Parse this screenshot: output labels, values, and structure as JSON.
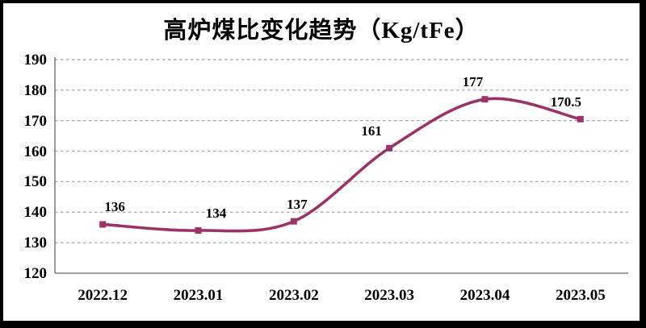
{
  "page": {
    "background": "#FFFFFF",
    "frame_border_color": "#000000"
  },
  "chart_data": {
    "type": "line",
    "title": "高炉煤比变化趋势（Kg/tFe）",
    "categories": [
      "2022.12",
      "2023.01",
      "2023.02",
      "2023.03",
      "2023.04",
      "2023.05"
    ],
    "values": [
      136,
      134,
      137,
      161,
      177,
      170.5
    ],
    "data_labels": [
      "136",
      "134",
      "137",
      "161",
      "177",
      "170.5"
    ],
    "xlabel": "",
    "ylabel": "",
    "ylim": [
      120,
      190
    ],
    "yticks": [
      120,
      130,
      140,
      150,
      160,
      170,
      180,
      190
    ],
    "grid": true,
    "grid_style": "dashed",
    "legend": "none",
    "smooth": true,
    "marker": "square",
    "colors": {
      "line": "#9C3366",
      "marker": "#9C3366",
      "gridline": "#ABABAB",
      "axis": "#808080",
      "text": "#000000",
      "background": "#FFFFFF",
      "frame_border": "#000000"
    }
  }
}
